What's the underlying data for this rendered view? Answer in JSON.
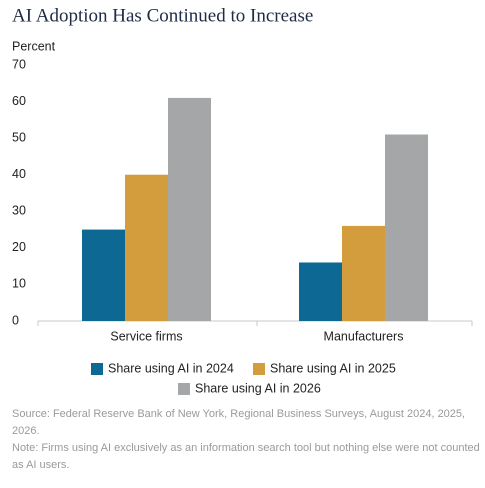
{
  "chart_data": {
    "type": "bar",
    "title": "AI Adoption Has Continued to Increase",
    "ylabel": "Percent",
    "categories": [
      "Service firms",
      "Manufacturers"
    ],
    "series": [
      {
        "name": "Share using AI in 2024",
        "color": "#0e6894",
        "values": [
          25,
          16
        ]
      },
      {
        "name": "Share using AI in 2025",
        "color": "#d39c3d",
        "values": [
          40,
          26
        ]
      },
      {
        "name": "Share using AI in 2026",
        "color": "#a5a6a8",
        "values": [
          61,
          51
        ]
      }
    ],
    "ylim": [
      0,
      70
    ],
    "yticks": [
      0,
      10,
      20,
      30,
      40,
      50,
      60,
      70
    ],
    "grid": false,
    "legend": "bottom",
    "source": "Source: Federal Reserve Bank of New York, Regional Business Surveys, August 2024, 2025, 2026.",
    "note": "Note: Firms using AI exclusively as an information search tool but nothing else were not counted as AI users."
  }
}
